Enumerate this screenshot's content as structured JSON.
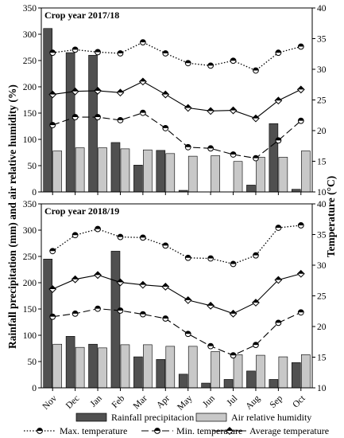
{
  "chart_data": {
    "type": "bar",
    "categories": [
      "Nov",
      "Dec",
      "Jan",
      "Feb",
      "Mar",
      "Apr",
      "May",
      "Jun",
      "Jul",
      "Aug",
      "Sep",
      "Oct"
    ],
    "y_left_label": "Rainfall precipitation (mm) and  air relative humidity (%)",
    "y_right_label": "Temperature (°C)",
    "y_left_range": [
      0,
      350
    ],
    "y_left_ticks": [
      "0",
      "50",
      "100",
      "150",
      "200",
      "250",
      "300",
      "350"
    ],
    "y_right_range": [
      10,
      40
    ],
    "y_right_ticks": [
      "10",
      "15",
      "20",
      "25",
      "30",
      "35",
      "40"
    ],
    "legend": {
      "rain": "Rainfall precipitacion",
      "humidity": "Air relative humidity",
      "max": "Max. temperature",
      "min": "Min. temperature",
      "avg": "Average temperature"
    },
    "colors": {
      "rain": "#505050",
      "humidity": "#c8c8c8"
    },
    "panels": [
      {
        "title": "Crop year 2017/18",
        "series": [
          {
            "name": "Rainfall precipitacion",
            "kind": "bar",
            "values": [
              311,
              265,
              260,
              94,
              51,
              79,
              3,
              0,
              0,
              13,
              130,
              5
            ]
          },
          {
            "name": "Air relative humidity",
            "kind": "bar",
            "values": [
              78,
              84,
              84,
              82,
              80,
              73,
              68,
              69,
              58,
              66,
              66,
              78
            ]
          },
          {
            "name": "Max. temperature",
            "kind": "line",
            "values": [
              32.7,
              33.2,
              32.8,
              32.6,
              34.4,
              32.6,
              31.0,
              30.6,
              31.4,
              29.8,
              32.7,
              33.7
            ]
          },
          {
            "name": "Min. temperature",
            "kind": "line",
            "values": [
              20.9,
              22.2,
              22.2,
              21.7,
              22.9,
              20.4,
              17.3,
              17.1,
              16.1,
              15.5,
              18.4,
              21.6
            ]
          },
          {
            "name": "Average temperature",
            "kind": "line",
            "values": [
              25.9,
              26.4,
              26.5,
              26.2,
              28.0,
              25.9,
              23.7,
              23.2,
              23.3,
              22.0,
              24.9,
              26.7
            ]
          }
        ]
      },
      {
        "title": "Crop year 2018/19",
        "series": [
          {
            "name": "Rainfall precipitacion",
            "kind": "bar",
            "values": [
              245,
              98,
              83,
              260,
              59,
              54,
              26,
              9,
              16,
              32,
              16,
              48
            ]
          },
          {
            "name": "Air relative humidity",
            "kind": "bar",
            "values": [
              83,
              77,
              76,
              82,
              82,
              79,
              79,
              69,
              63,
              62,
              59,
              63
            ]
          },
          {
            "name": "Max. temperature",
            "kind": "line",
            "values": [
              32.3,
              34.9,
              35.9,
              34.6,
              34.5,
              33.2,
              31.2,
              31.1,
              30.2,
              31.6,
              36.1,
              36.5
            ]
          },
          {
            "name": "Min. temperature",
            "kind": "line",
            "values": [
              21.6,
              22.1,
              22.9,
              22.6,
              22.0,
              21.3,
              18.8,
              16.8,
              15.3,
              17.0,
              20.6,
              22.3
            ]
          },
          {
            "name": "Average temperature",
            "kind": "line",
            "values": [
              26.1,
              27.7,
              28.4,
              27.2,
              26.8,
              26.5,
              24.3,
              23.4,
              22.1,
              23.9,
              27.6,
              28.6
            ]
          }
        ]
      }
    ]
  }
}
